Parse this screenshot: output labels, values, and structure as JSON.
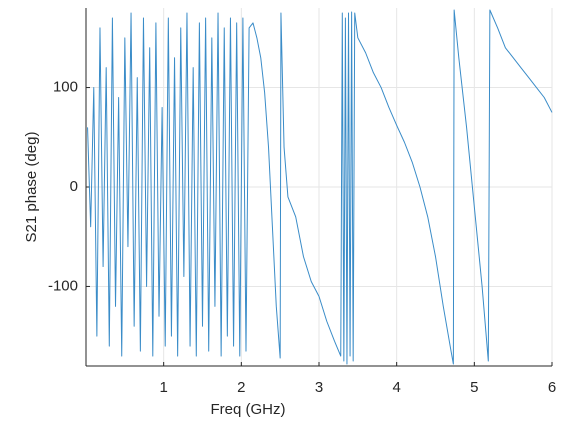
{
  "chart_data": {
    "type": "line",
    "xlabel": "Freq (GHz)",
    "ylabel": "S21 phase (deg)",
    "xlim": [
      0,
      6
    ],
    "ylim": [
      -180,
      180
    ],
    "xticks": [
      1,
      2,
      3,
      4,
      5,
      6
    ],
    "yticks": [
      -100,
      0,
      100
    ],
    "grid": true,
    "x": [
      0.02,
      0.06,
      0.1,
      0.14,
      0.18,
      0.22,
      0.26,
      0.3,
      0.34,
      0.38,
      0.42,
      0.46,
      0.5,
      0.54,
      0.58,
      0.62,
      0.66,
      0.7,
      0.74,
      0.78,
      0.82,
      0.86,
      0.9,
      0.94,
      0.98,
      1.02,
      1.06,
      1.1,
      1.14,
      1.18,
      1.22,
      1.26,
      1.3,
      1.34,
      1.38,
      1.42,
      1.46,
      1.5,
      1.54,
      1.58,
      1.62,
      1.66,
      1.7,
      1.74,
      1.78,
      1.82,
      1.86,
      1.9,
      1.94,
      1.98,
      2.02,
      2.06,
      2.1,
      2.15,
      2.2,
      2.25,
      2.3,
      2.35,
      2.4,
      2.45,
      2.5,
      2.51,
      2.55,
      2.6,
      2.7,
      2.8,
      2.9,
      3.0,
      3.1,
      3.2,
      3.28,
      3.3,
      3.32,
      3.34,
      3.36,
      3.38,
      3.4,
      3.42,
      3.44,
      3.46,
      3.5,
      3.6,
      3.7,
      3.8,
      3.9,
      4.0,
      4.1,
      4.2,
      4.3,
      4.4,
      4.5,
      4.6,
      4.7,
      4.73,
      4.74,
      4.8,
      4.9,
      5.0,
      5.1,
      5.18,
      5.2,
      5.3,
      5.4,
      5.5,
      5.6,
      5.7,
      5.8,
      5.9,
      6.0
    ],
    "series": [
      {
        "name": "S21",
        "color": "#3a8cc8",
        "values": [
          60,
          -40,
          100,
          -150,
          160,
          -80,
          120,
          -160,
          170,
          -120,
          90,
          -170,
          150,
          -60,
          175,
          -140,
          110,
          -165,
          170,
          -100,
          140,
          -170,
          165,
          -130,
          80,
          -160,
          170,
          -150,
          130,
          -170,
          160,
          -90,
          175,
          -160,
          120,
          -170,
          165,
          -140,
          170,
          -165,
          150,
          -120,
          175,
          -170,
          160,
          -150,
          170,
          -160,
          165,
          -170,
          170,
          -165,
          160,
          165,
          150,
          130,
          95,
          40,
          -40,
          -120,
          -172,
          175,
          40,
          -10,
          -30,
          -70,
          -95,
          -110,
          -135,
          -155,
          -170,
          175,
          -175,
          170,
          -178,
          175,
          -170,
          176,
          -175,
          175,
          150,
          135,
          115,
          100,
          80,
          62,
          45,
          25,
          0,
          -30,
          -70,
          -120,
          -165,
          -178,
          178,
          130,
          60,
          -20,
          -100,
          -175,
          178,
          160,
          140,
          130,
          120,
          110,
          100,
          90,
          75
        ]
      }
    ]
  }
}
